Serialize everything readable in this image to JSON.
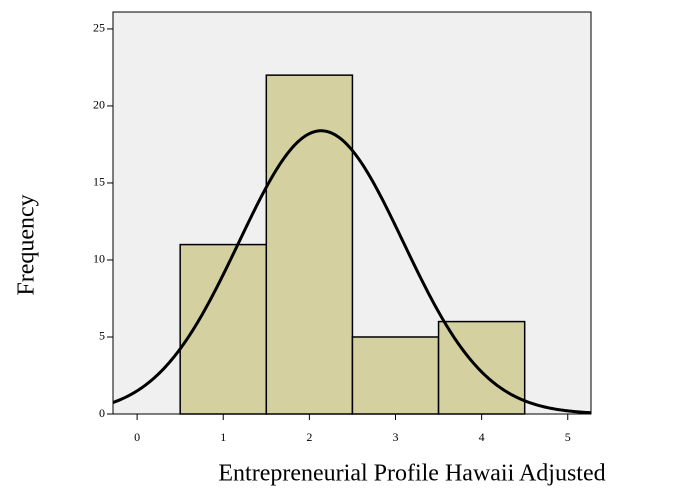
{
  "chart_data": {
    "type": "histogram",
    "xlabel": "Entrepreneurial Profile Hawaii Adjusted",
    "ylabel": "Frequency",
    "bins": [
      0.5,
      1.5,
      2.5,
      3.5,
      4.5
    ],
    "counts": [
      11,
      22,
      5,
      6
    ],
    "color": "#d4d0a0",
    "background": "#f0f0f0",
    "normal_curve": true,
    "xlim": [
      -0.28,
      5.27
    ],
    "xticks": [
      0,
      1,
      2,
      3,
      4,
      5
    ],
    "ylim": [
      0,
      26.1
    ],
    "yticks": [
      0,
      5,
      10,
      15,
      20,
      25
    ]
  }
}
